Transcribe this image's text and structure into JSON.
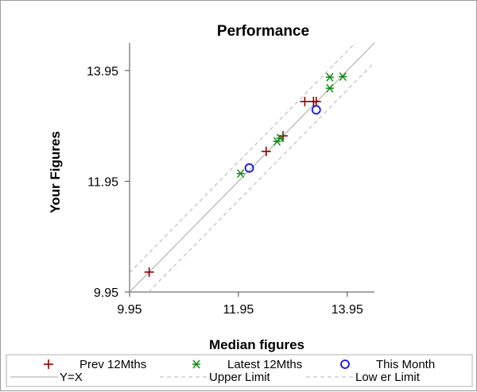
{
  "chart_data": {
    "type": "scatter",
    "title": "Performance",
    "xlabel": "Median figures",
    "ylabel": "Your Figures",
    "xlim": [
      9.95,
      14.45
    ],
    "ylim": [
      9.95,
      14.45
    ],
    "x_ticks": [
      "9.95",
      "11.95",
      "13.95"
    ],
    "y_ticks": [
      "9.95",
      "11.95",
      "13.95"
    ],
    "grid": false,
    "legend_position": "bottom",
    "limit_offset": 0.35,
    "series": [
      {
        "name": "Prev 12Mths",
        "marker": "plus",
        "color": "#8b0000",
        "points": [
          {
            "x": 10.31,
            "y": 10.31
          },
          {
            "x": 12.46,
            "y": 12.49
          },
          {
            "x": 12.77,
            "y": 12.77
          },
          {
            "x": 13.17,
            "y": 13.39
          },
          {
            "x": 13.33,
            "y": 13.39
          },
          {
            "x": 13.38,
            "y": 13.39
          }
        ]
      },
      {
        "name": "Latest 12Mths",
        "marker": "star",
        "color": "#128c12",
        "points": [
          {
            "x": 11.99,
            "y": 12.09
          },
          {
            "x": 12.66,
            "y": 12.67
          },
          {
            "x": 12.72,
            "y": 12.73
          },
          {
            "x": 13.63,
            "y": 13.83
          },
          {
            "x": 13.63,
            "y": 13.63
          },
          {
            "x": 13.87,
            "y": 13.84
          }
        ]
      },
      {
        "name": "This Month",
        "marker": "circle",
        "color": "#1010ee",
        "points": [
          {
            "x": 12.15,
            "y": 12.19
          },
          {
            "x": 13.38,
            "y": 13.24
          }
        ]
      }
    ],
    "lines": [
      {
        "name": "Y=X",
        "style": "solid",
        "color": "#a8a8a8"
      },
      {
        "name": "Upper Limit",
        "style": "dashed",
        "color": "#b4b4b4"
      },
      {
        "name": "Low er Limit",
        "style": "dashed",
        "color": "#b4b4b4"
      }
    ]
  }
}
